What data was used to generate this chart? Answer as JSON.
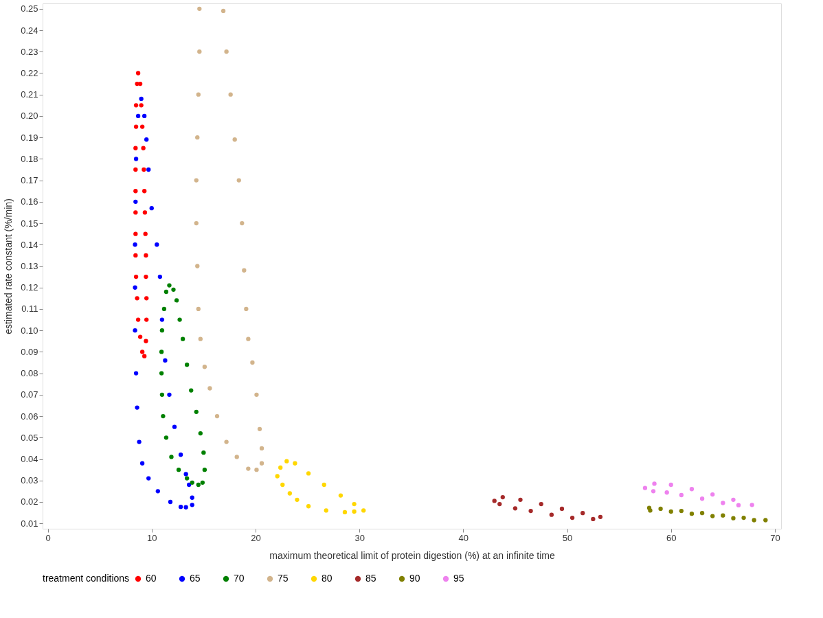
{
  "chart_data": {
    "type": "scatter",
    "xlabel": "maximum theoretical limit of protein digestion (%) at an infinite time",
    "ylabel": "estimated rate constant (%/min)",
    "legend_title": "treatment conditions",
    "legend": "bottom",
    "marker": "circle",
    "grid": false,
    "xlim": [
      -0.5,
      70.6
    ],
    "ylim": [
      0.0075,
      0.2525
    ],
    "xticks": [
      0,
      10,
      20,
      30,
      40,
      50,
      60,
      70
    ],
    "yticks": [
      0.01,
      0.02,
      0.03,
      0.04,
      0.05,
      0.06,
      0.07,
      0.08,
      0.09,
      {
        "value": 0.1,
        "label": "0.10"
      },
      0.11,
      0.12,
      0.13,
      0.14,
      0.15,
      0.16,
      0.17,
      0.18,
      0.19,
      {
        "value": 0.2,
        "label": "0.20"
      },
      0.21,
      0.22,
      0.23,
      0.24,
      0.25
    ],
    "series": [
      {
        "name": "60",
        "color": "#ff0000",
        "x": [
          8.7,
          8.9,
          9.0,
          9.1,
          9.2,
          9.25,
          9.3,
          9.35,
          9.4,
          9.45,
          9.45,
          9.5,
          9.5,
          9.45,
          9.3,
          9.1,
          8.9,
          8.7,
          8.6,
          8.5,
          8.45,
          8.45,
          8.45,
          8.45,
          8.45,
          8.45,
          8.5,
          8.5,
          8.6
        ],
        "values": [
          0.22,
          0.215,
          0.205,
          0.195,
          0.185,
          0.175,
          0.165,
          0.155,
          0.145,
          0.135,
          0.125,
          0.115,
          0.105,
          0.095,
          0.088,
          0.09,
          0.097,
          0.105,
          0.115,
          0.125,
          0.135,
          0.145,
          0.155,
          0.165,
          0.175,
          0.185,
          0.195,
          0.205,
          0.215
        ]
      },
      {
        "name": "65",
        "color": "#0000ff",
        "x": [
          9.0,
          9.3,
          9.5,
          9.7,
          10.0,
          10.5,
          10.8,
          11.0,
          11.3,
          11.7,
          12.2,
          12.8,
          13.3,
          13.6,
          13.9,
          13.9,
          13.3,
          12.8,
          11.8,
          10.6,
          9.7,
          9.1,
          8.8,
          8.6,
          8.5,
          8.4,
          8.4,
          8.4,
          8.45,
          8.5,
          8.7
        ],
        "values": [
          0.208,
          0.2,
          0.189,
          0.175,
          0.157,
          0.14,
          0.125,
          0.105,
          0.086,
          0.07,
          0.055,
          0.042,
          0.033,
          0.028,
          0.022,
          0.0186,
          0.0175,
          0.0177,
          0.02,
          0.025,
          0.031,
          0.038,
          0.048,
          0.064,
          0.08,
          0.1,
          0.12,
          0.14,
          0.16,
          0.18,
          0.2
        ]
      },
      {
        "name": "70",
        "color": "#008000",
        "x": [
          11.7,
          12.1,
          12.4,
          12.7,
          13.0,
          13.4,
          13.8,
          14.3,
          14.7,
          15.0,
          15.1,
          14.9,
          14.5,
          13.9,
          13.4,
          12.6,
          11.9,
          11.4,
          11.1,
          11.0,
          10.95,
          10.95,
          11.0,
          11.2,
          11.4
        ],
        "values": [
          0.121,
          0.119,
          0.114,
          0.105,
          0.096,
          0.084,
          0.072,
          0.062,
          0.052,
          0.043,
          0.035,
          0.029,
          0.028,
          0.029,
          0.031,
          0.035,
          0.041,
          0.05,
          0.06,
          0.07,
          0.08,
          0.09,
          0.1,
          0.11,
          0.118
        ]
      },
      {
        "name": "75",
        "color": "#d2b48c",
        "x": [
          14.6,
          14.6,
          14.5,
          14.4,
          14.3,
          14.3,
          14.4,
          14.5,
          14.7,
          15.1,
          15.6,
          16.3,
          17.2,
          18.2,
          19.3,
          20.1,
          20.6,
          20.6,
          20.4,
          20.1,
          19.7,
          19.3,
          19.1,
          18.9,
          18.7,
          18.4,
          18.0,
          17.6,
          17.2,
          16.9
        ],
        "values": [
          0.25,
          0.23,
          0.21,
          0.19,
          0.17,
          0.15,
          0.13,
          0.11,
          0.096,
          0.083,
          0.073,
          0.06,
          0.048,
          0.041,
          0.0355,
          0.035,
          0.038,
          0.045,
          0.054,
          0.07,
          0.085,
          0.096,
          0.11,
          0.128,
          0.15,
          0.17,
          0.189,
          0.21,
          0.23,
          0.249
        ]
      },
      {
        "name": "80",
        "color": "#ffd700",
        "x": [
          22.1,
          22.4,
          23.0,
          23.8,
          25.1,
          26.6,
          28.2,
          29.5,
          30.4,
          29.5,
          28.6,
          26.8,
          25.1,
          24.0,
          23.3,
          22.6
        ],
        "values": [
          0.032,
          0.036,
          0.039,
          0.038,
          0.0333,
          0.028,
          0.023,
          0.019,
          0.016,
          0.0155,
          0.0152,
          0.016,
          0.018,
          0.021,
          0.024,
          0.028
        ]
      },
      {
        "name": "85",
        "color": "#a52a2a",
        "x": [
          43.0,
          43.8,
          45.5,
          47.5,
          49.5,
          51.5,
          53.2,
          52.5,
          50.5,
          48.5,
          46.5,
          45.0,
          43.5
        ],
        "values": [
          0.0205,
          0.0222,
          0.021,
          0.019,
          0.0168,
          0.0148,
          0.013,
          0.012,
          0.0126,
          0.014,
          0.0158,
          0.017,
          0.019
        ]
      },
      {
        "name": "90",
        "color": "#808000",
        "x": [
          57.9,
          59.0,
          61.0,
          63.0,
          65.0,
          67.0,
          69.1,
          68.0,
          66.0,
          64.0,
          62.0,
          60.0,
          58.0
        ],
        "values": [
          0.0172,
          0.0168,
          0.0158,
          0.0148,
          0.0137,
          0.0126,
          0.0115,
          0.0115,
          0.0124,
          0.0134,
          0.0145,
          0.0155,
          0.016
        ]
      },
      {
        "name": "95",
        "color": "#ee82ee",
        "x": [
          57.5,
          58.4,
          60.0,
          62.0,
          64.0,
          66.0,
          67.8,
          66.5,
          65.0,
          63.0,
          61.0,
          59.6,
          58.3
        ],
        "values": [
          0.0265,
          0.0285,
          0.028,
          0.026,
          0.0235,
          0.021,
          0.0186,
          0.0185,
          0.0195,
          0.0215,
          0.0232,
          0.0244,
          0.025
        ]
      }
    ]
  }
}
